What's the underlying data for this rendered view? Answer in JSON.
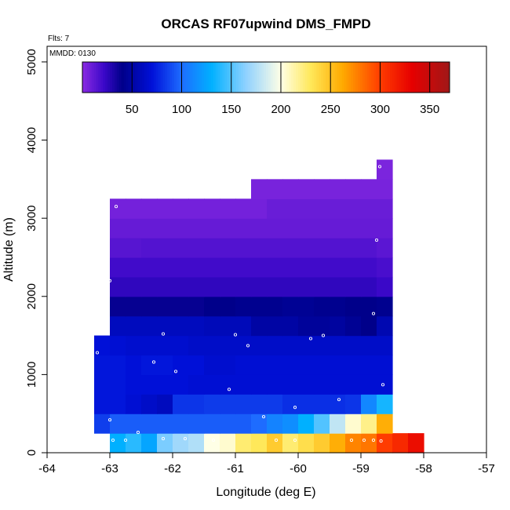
{
  "chart_data": {
    "type": "heatmap",
    "title": "ORCAS RF07upwind DMS_FMPD",
    "xlabel": "Longitude (deg E)",
    "ylabel": "Altitude (m)",
    "xlim": [
      -64,
      -57
    ],
    "ylim": [
      0,
      5200
    ],
    "x_ticks": [
      -64,
      -63,
      -62,
      -61,
      -60,
      -59,
      -58,
      -57
    ],
    "y_ticks": [
      0,
      1000,
      2000,
      3000,
      4000,
      5000
    ],
    "notes": {
      "flights": "Flts: 7",
      "date": "MMDD: 0130"
    },
    "colorbar": {
      "min": 0,
      "max": 370,
      "ticks": [
        50,
        100,
        150,
        200,
        250,
        300,
        350
      ],
      "stops": [
        {
          "v": 0,
          "c": "#8a2be2"
        },
        {
          "v": 22,
          "c": "#3a08c8"
        },
        {
          "v": 40,
          "c": "#00008a"
        },
        {
          "v": 70,
          "c": "#0010d8"
        },
        {
          "v": 100,
          "c": "#1e6cff"
        },
        {
          "v": 130,
          "c": "#00b0ff"
        },
        {
          "v": 165,
          "c": "#90d2ff"
        },
        {
          "v": 200,
          "c": "#ffffe6"
        },
        {
          "v": 230,
          "c": "#ffe85a"
        },
        {
          "v": 262,
          "c": "#ffaa00"
        },
        {
          "v": 300,
          "c": "#ff3c00"
        },
        {
          "v": 332,
          "c": "#e60000"
        },
        {
          "v": 370,
          "c": "#a01818"
        }
      ]
    },
    "grid": {
      "x_start": -63.25,
      "dx": 0.25,
      "y_start": 0,
      "dy": 250
    },
    "rows": [
      {
        "alt_bin": "0-250",
        "start_col": 0,
        "values": [
          null,
          130,
          140,
          125,
          160,
          170,
          175,
          200,
          205,
          225,
          230,
          245,
          225,
          235,
          245,
          260,
          275,
          280,
          300,
          310,
          325
        ]
      },
      {
        "alt_bin": "250-500",
        "start_col": 0,
        "values": [
          85,
          95,
          95,
          95,
          95,
          95,
          95,
          95,
          95,
          95,
          100,
          110,
          115,
          130,
          150,
          180,
          205,
          220,
          260
        ]
      },
      {
        "alt_bin": "500-750",
        "start_col": 0,
        "values": [
          72,
          72,
          68,
          64,
          60,
          82,
          82,
          84,
          84,
          84,
          84,
          84,
          80,
          80,
          80,
          80,
          82,
          112,
          135
        ]
      },
      {
        "alt_bin": "750-1000",
        "start_col": 0,
        "values": [
          72,
          72,
          70,
          70,
          70,
          70,
          68,
          68,
          68,
          68,
          68,
          68,
          68,
          68,
          68,
          68,
          68,
          68,
          68
        ]
      },
      {
        "alt_bin": "1000-1250",
        "start_col": 0,
        "values": [
          72,
          72,
          70,
          72,
          72,
          70,
          70,
          66,
          66,
          68,
          68,
          68,
          68,
          68,
          68,
          68,
          68,
          68,
          68
        ]
      },
      {
        "alt_bin": "1250-1500",
        "start_col": 0,
        "values": [
          70,
          68,
          66,
          66,
          66,
          66,
          64,
          64,
          64,
          64,
          64,
          64,
          64,
          64,
          64,
          64,
          64,
          64,
          64
        ]
      },
      {
        "alt_bin": "1500-1750",
        "start_col": 1,
        "values": [
          60,
          60,
          60,
          60,
          60,
          60,
          58,
          58,
          58,
          50,
          50,
          50,
          46,
          46,
          48,
          44,
          40,
          55
        ]
      },
      {
        "alt_bin": "1750-2000",
        "start_col": 1,
        "values": [
          38,
          38,
          38,
          38,
          38,
          38,
          40,
          40,
          42,
          42,
          42,
          44,
          44,
          42,
          42,
          40,
          40,
          42
        ]
      },
      {
        "alt_bin": "2000-2250",
        "start_col": 1,
        "values": [
          25,
          25,
          25,
          25,
          25,
          25,
          25,
          25,
          25,
          25,
          25,
          25,
          25,
          25,
          25,
          25,
          25,
          22
        ]
      },
      {
        "alt_bin": "2250-2500",
        "start_col": 1,
        "values": [
          20,
          20,
          20,
          20,
          20,
          20,
          20,
          20,
          20,
          20,
          20,
          20,
          20,
          20,
          20,
          20,
          20,
          18
        ]
      },
      {
        "alt_bin": "2500-2750",
        "start_col": 1,
        "values": [
          14,
          14,
          15,
          15,
          15,
          15,
          15,
          15,
          15,
          15,
          15,
          15,
          15,
          15,
          15,
          15,
          15,
          13
        ]
      },
      {
        "alt_bin": "2750-3000",
        "start_col": 1,
        "values": [
          10,
          10,
          10,
          10,
          10,
          10,
          10,
          10,
          10,
          10,
          10,
          10,
          10,
          10,
          10,
          10,
          10,
          10
        ]
      },
      {
        "alt_bin": "3000-3250",
        "start_col": 1,
        "values": [
          6,
          6,
          6,
          6,
          6,
          6,
          6,
          6,
          6,
          6,
          9,
          9,
          9,
          9,
          9,
          9,
          9,
          9
        ]
      },
      {
        "alt_bin": "3250-3500",
        "start_col": 10,
        "values": [
          5,
          5,
          5,
          5,
          5,
          5,
          5,
          5,
          5
        ]
      },
      {
        "alt_bin": "3500-3750",
        "start_col": 18,
        "values": [
          4
        ]
      }
    ],
    "sample_points": [
      {
        "lon": -62.9,
        "alt": 3150
      },
      {
        "lon": -58.7,
        "alt": 3660
      },
      {
        "lon": -58.75,
        "alt": 2720
      },
      {
        "lon": -63.0,
        "alt": 2200
      },
      {
        "lon": -58.8,
        "alt": 1780
      },
      {
        "lon": -62.15,
        "alt": 1520
      },
      {
        "lon": -61.0,
        "alt": 1510
      },
      {
        "lon": -60.8,
        "alt": 1370
      },
      {
        "lon": -59.8,
        "alt": 1460
      },
      {
        "lon": -59.6,
        "alt": 1500
      },
      {
        "lon": -63.2,
        "alt": 1280
      },
      {
        "lon": -62.3,
        "alt": 1160
      },
      {
        "lon": -61.95,
        "alt": 1040
      },
      {
        "lon": -58.65,
        "alt": 870
      },
      {
        "lon": -61.1,
        "alt": 810
      },
      {
        "lon": -59.35,
        "alt": 680
      },
      {
        "lon": -60.05,
        "alt": 580
      },
      {
        "lon": -60.55,
        "alt": 460
      },
      {
        "lon": -63.0,
        "alt": 420
      },
      {
        "lon": -62.55,
        "alt": 260
      },
      {
        "lon": -62.95,
        "alt": 160
      },
      {
        "lon": -62.75,
        "alt": 160
      },
      {
        "lon": -62.15,
        "alt": 180
      },
      {
        "lon": -61.8,
        "alt": 180
      },
      {
        "lon": -61.35,
        "alt": 160
      },
      {
        "lon": -60.35,
        "alt": 160
      },
      {
        "lon": -60.05,
        "alt": 160
      },
      {
        "lon": -59.15,
        "alt": 160
      },
      {
        "lon": -58.95,
        "alt": 160
      },
      {
        "lon": -58.8,
        "alt": 160
      },
      {
        "lon": -58.68,
        "alt": 150
      }
    ]
  }
}
